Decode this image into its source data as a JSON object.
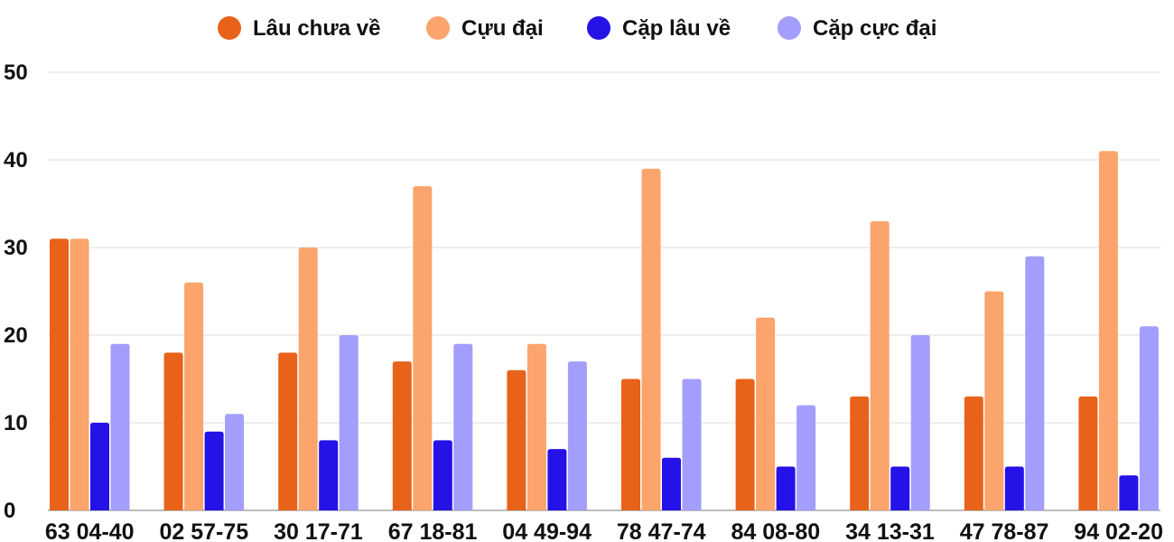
{
  "chart_data": {
    "type": "bar",
    "title": "",
    "xlabel": "",
    "ylabel": "",
    "ylim": [
      0,
      50
    ],
    "yticks": [
      0,
      10,
      20,
      30,
      40,
      50
    ],
    "grid": true,
    "legend_position": "top",
    "categories": [
      "63 04-40",
      "02 57-75",
      "30 17-71",
      "67 18-81",
      "04 49-94",
      "78 47-74",
      "84 08-80",
      "34 13-31",
      "47 78-87",
      "94 02-20"
    ],
    "series": [
      {
        "name": "Lâu chưa về",
        "color": "#e8621a",
        "values": [
          31,
          18,
          18,
          17,
          16,
          15,
          15,
          13,
          13,
          13
        ]
      },
      {
        "name": "Cựu đại",
        "color": "#fba46b",
        "values": [
          31,
          26,
          30,
          37,
          19,
          39,
          22,
          33,
          25,
          41
        ]
      },
      {
        "name": "Cặp lâu về",
        "color": "#2412e6",
        "values": [
          10,
          9,
          8,
          8,
          7,
          6,
          5,
          5,
          5,
          4
        ]
      },
      {
        "name": "Cặp cực đại",
        "color": "#a39dfb",
        "values": [
          19,
          11,
          20,
          19,
          17,
          15,
          12,
          20,
          29,
          21
        ]
      }
    ]
  }
}
